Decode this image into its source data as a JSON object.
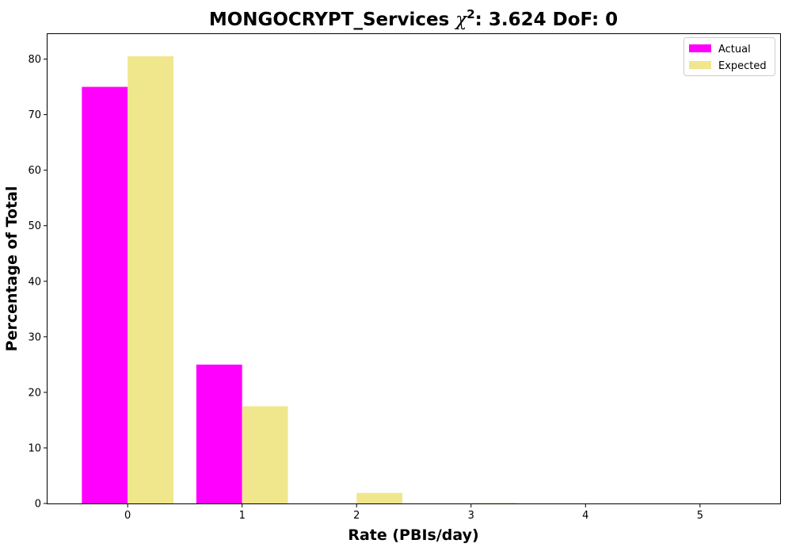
{
  "chart_data": {
    "type": "bar",
    "title": {
      "prefix": "MONGOCRYPT_Services ",
      "chi": "χ",
      "exp": "2",
      "suffix": ": 3.624 DoF: 0"
    },
    "xlabel": "Rate (PBIs/day)",
    "ylabel": "Percentage of Total",
    "categories": [
      "0",
      "1",
      "2",
      "3",
      "4",
      "5"
    ],
    "x": [
      0,
      1,
      2,
      3,
      4,
      5
    ],
    "xlim": [
      -0.7,
      5.7
    ],
    "ylim": [
      0,
      84.5
    ],
    "yticks": [
      0,
      10,
      20,
      30,
      40,
      50,
      60,
      70,
      80
    ],
    "grid": false,
    "legend_position": "top-right",
    "series": [
      {
        "name": "Actual",
        "color": "#ff00ff",
        "values": [
          75.0,
          25.0,
          0,
          0,
          0,
          0
        ]
      },
      {
        "name": "Expected",
        "color": "#f0e68c",
        "values": [
          80.5,
          17.5,
          1.9,
          0.1,
          0.0,
          0.0
        ]
      }
    ]
  }
}
